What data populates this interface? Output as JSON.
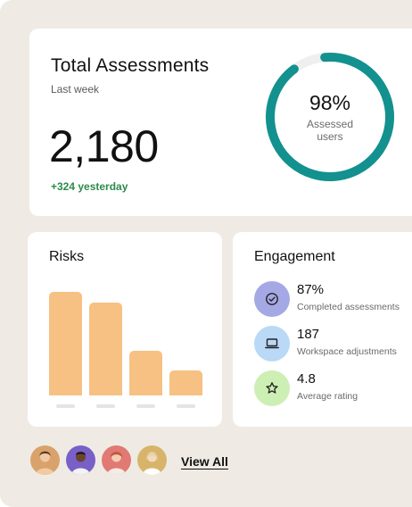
{
  "total": {
    "title": "Total Assessments",
    "period": "Last week",
    "value": "2,180",
    "delta": "+324 yesterday",
    "donut_percent_text": "98%",
    "donut_fraction": 0.98,
    "donut_label": "Assessed users",
    "ring_color": "#12918f",
    "track_color": "#efefef"
  },
  "risks": {
    "title": "Risks",
    "bar_color": "#f6c182"
  },
  "chart_data": {
    "type": "bar",
    "categories": [
      "",
      "",
      "",
      ""
    ],
    "values": [
      100,
      90,
      43,
      24
    ],
    "title": "Risks",
    "xlabel": "",
    "ylabel": "",
    "ylim": [
      0,
      100
    ],
    "grid": false
  },
  "engagement": {
    "title": "Engagement",
    "items": [
      {
        "value": "87%",
        "label": "Completed assessments",
        "icon": "check-circle-icon",
        "icon_bg": "#a4a8e4"
      },
      {
        "value": "187",
        "label": "Workspace adjustments",
        "icon": "laptop-icon",
        "icon_bg": "#b9d9f6"
      },
      {
        "value": "4.8",
        "label": "Average rating",
        "icon": "star-icon",
        "icon_bg": "#cdefb4"
      }
    ]
  },
  "footer": {
    "view_all": "View All",
    "avatars": [
      {
        "bg": "#d9a26a"
      },
      {
        "bg": "#7860c8"
      },
      {
        "bg": "#e07a72"
      },
      {
        "bg": "#d8b46a"
      }
    ]
  }
}
